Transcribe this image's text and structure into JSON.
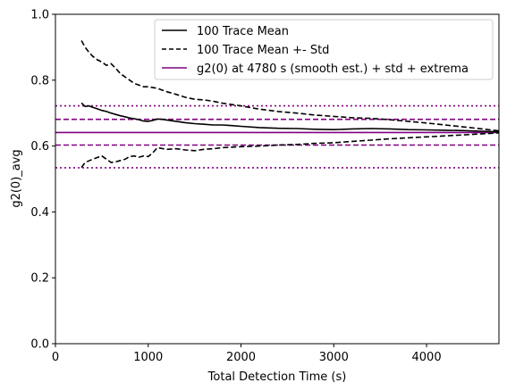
{
  "chart_data": {
    "type": "line",
    "xlabel": "Total Detection Time (s)",
    "ylabel": "g2(0)_avg",
    "xlim": [
      0,
      4780
    ],
    "ylim": [
      0,
      1.0
    ],
    "xticks": [
      0,
      1000,
      2000,
      3000,
      4000
    ],
    "yticks": [
      0.0,
      0.2,
      0.4,
      0.6,
      0.8,
      1.0
    ],
    "xtick_labels": [
      "0",
      "1000",
      "2000",
      "3000",
      "4000"
    ],
    "ytick_labels": [
      "0.0",
      "0.2",
      "0.4",
      "0.6",
      "0.8",
      "1.0"
    ],
    "legend": [
      "100 Trace Mean",
      "100 Trace Mean +- Std",
      "g2(0) at 4780 s (smooth est.) + std + extrema"
    ],
    "legend_position": "top-right",
    "grid": false,
    "series": [
      {
        "name": "100 Trace Mean",
        "style": "solid",
        "color": "#000000",
        "x": [
          280,
          320,
          360,
          400,
          450,
          500,
          550,
          600,
          650,
          700,
          750,
          800,
          850,
          900,
          950,
          1000,
          1050,
          1100,
          1150,
          1200,
          1300,
          1400,
          1500,
          1600,
          1700,
          1800,
          1900,
          2000,
          2200,
          2400,
          2600,
          2800,
          3000,
          3200,
          3400,
          3600,
          3800,
          4000,
          4200,
          4400,
          4600,
          4780
        ],
        "y": [
          0.731,
          0.72,
          0.722,
          0.718,
          0.713,
          0.708,
          0.705,
          0.7,
          0.696,
          0.692,
          0.689,
          0.685,
          0.683,
          0.68,
          0.676,
          0.675,
          0.678,
          0.682,
          0.681,
          0.679,
          0.675,
          0.671,
          0.668,
          0.666,
          0.664,
          0.664,
          0.662,
          0.66,
          0.656,
          0.654,
          0.653,
          0.651,
          0.65,
          0.652,
          0.653,
          0.652,
          0.65,
          0.649,
          0.648,
          0.647,
          0.645,
          0.643
        ]
      },
      {
        "name": "100 Trace Mean +- Std",
        "style": "dashed",
        "color": "#000000",
        "x": [
          280,
          320,
          360,
          400,
          450,
          500,
          550,
          600,
          650,
          700,
          750,
          800,
          850,
          900,
          950,
          1000,
          1100,
          1200,
          1300,
          1400,
          1500,
          1600,
          1700,
          1800,
          2000,
          2200,
          2400,
          2600,
          2800,
          3000,
          3200,
          3400,
          3600,
          3800,
          4000,
          4200,
          4400,
          4600,
          4780
        ],
        "y": [
          0.92,
          0.9,
          0.885,
          0.873,
          0.862,
          0.855,
          0.845,
          0.85,
          0.836,
          0.82,
          0.81,
          0.8,
          0.79,
          0.785,
          0.78,
          0.78,
          0.775,
          0.765,
          0.757,
          0.748,
          0.742,
          0.74,
          0.736,
          0.73,
          0.722,
          0.712,
          0.705,
          0.7,
          0.694,
          0.69,
          0.686,
          0.684,
          0.68,
          0.675,
          0.67,
          0.664,
          0.658,
          0.652,
          0.646
        ]
      },
      {
        "name": "100 Trace Mean +- Std (lower)",
        "style": "dashed",
        "color": "#000000",
        "x": [
          280,
          320,
          360,
          400,
          450,
          500,
          550,
          600,
          650,
          700,
          750,
          800,
          850,
          900,
          950,
          1000,
          1050,
          1100,
          1200,
          1300,
          1400,
          1500,
          1600,
          1700,
          1800,
          2000,
          2200,
          2400,
          2600,
          2800,
          3000,
          3200,
          3400,
          3600,
          3800,
          4000,
          4200,
          4400,
          4600,
          4780
        ],
        "y": [
          0.535,
          0.55,
          0.555,
          0.56,
          0.565,
          0.57,
          0.56,
          0.55,
          0.552,
          0.556,
          0.56,
          0.568,
          0.57,
          0.566,
          0.57,
          0.568,
          0.58,
          0.595,
          0.59,
          0.592,
          0.588,
          0.586,
          0.59,
          0.592,
          0.595,
          0.598,
          0.6,
          0.603,
          0.605,
          0.608,
          0.61,
          0.614,
          0.618,
          0.622,
          0.625,
          0.628,
          0.631,
          0.634,
          0.637,
          0.64
        ]
      }
    ],
    "hlines": [
      {
        "y": 0.641,
        "style": "solid",
        "color": "#800080"
      },
      {
        "y": 0.681,
        "style": "dashed",
        "color": "#800080"
      },
      {
        "y": 0.603,
        "style": "dashed",
        "color": "#800080"
      },
      {
        "y": 0.722,
        "style": "dotted",
        "color": "#800080"
      },
      {
        "y": 0.534,
        "style": "dotted",
        "color": "#800080"
      }
    ]
  }
}
